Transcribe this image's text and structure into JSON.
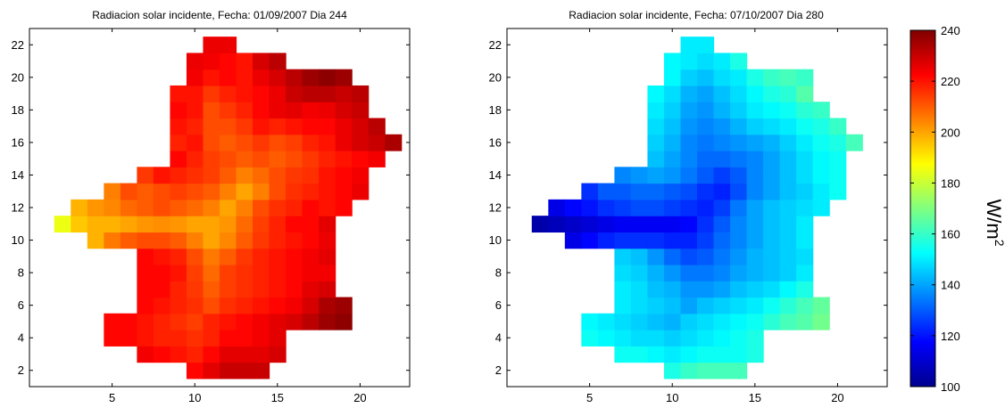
{
  "chart_data": [
    {
      "type": "heatmap",
      "title": "Radiacion solar incidente, Fecha: 01/09/2007 Dia 244",
      "xlim": [
        0,
        23
      ],
      "ylim": [
        1,
        23
      ],
      "xticks": [
        5,
        10,
        15,
        20
      ],
      "yticks": [
        2,
        4,
        6,
        8,
        10,
        12,
        14,
        16,
        18,
        20,
        22
      ],
      "grid": false,
      "units": "W/m²",
      "clim": [
        100,
        240
      ],
      "colormap": "jet",
      "cell_values_approx": {
        "22": {
          "11": 225,
          "12": 225
        },
        "21": {
          "10": 225,
          "11": 224,
          "12": 222,
          "13": 220,
          "14": 228,
          "15": 232
        },
        "20": {
          "10": 224,
          "11": 220,
          "12": 222,
          "13": 220,
          "14": 225,
          "15": 228,
          "16": 232,
          "17": 236,
          "18": 238,
          "19": 236
        },
        "19": {
          "9": 220,
          "10": 220,
          "11": 215,
          "12": 218,
          "13": 220,
          "14": 222,
          "15": 225,
          "16": 230,
          "17": 232,
          "18": 232,
          "19": 230,
          "20": 232
        },
        "18": {
          "9": 222,
          "10": 220,
          "11": 212,
          "12": 215,
          "13": 218,
          "14": 222,
          "15": 225,
          "16": 226,
          "17": 224,
          "18": 225,
          "19": 228,
          "20": 230
        },
        "17": {
          "9": 220,
          "10": 218,
          "11": 212,
          "12": 212,
          "13": 215,
          "14": 220,
          "15": 218,
          "16": 220,
          "17": 222,
          "18": 222,
          "19": 225,
          "20": 228,
          "21": 232
        },
        "16": {
          "9": 218,
          "10": 220,
          "11": 212,
          "12": 210,
          "13": 212,
          "14": 215,
          "15": 212,
          "16": 214,
          "17": 218,
          "18": 220,
          "19": 225,
          "20": 228,
          "21": 230,
          "22": 234
        },
        "15": {
          "9": 222,
          "10": 218,
          "11": 214,
          "12": 212,
          "13": 210,
          "14": 212,
          "15": 210,
          "16": 212,
          "17": 215,
          "18": 218,
          "19": 220,
          "20": 222,
          "21": 224
        },
        "14": {
          "7": 215,
          "8": 220,
          "9": 218,
          "10": 216,
          "11": 214,
          "12": 210,
          "13": 205,
          "14": 208,
          "15": 212,
          "16": 215,
          "17": 216,
          "18": 220,
          "19": 222,
          "20": 224
        },
        "13": {
          "5": 205,
          "6": 212,
          "7": 210,
          "8": 212,
          "9": 214,
          "10": 212,
          "11": 210,
          "12": 205,
          "13": 200,
          "14": 205,
          "15": 212,
          "16": 216,
          "17": 218,
          "18": 220,
          "19": 222,
          "20": 225
        },
        "12": {
          "3": 198,
          "4": 202,
          "5": 204,
          "6": 208,
          "7": 210,
          "8": 212,
          "9": 210,
          "10": 208,
          "11": 205,
          "12": 200,
          "13": 205,
          "14": 212,
          "15": 216,
          "16": 218,
          "17": 222,
          "18": 220,
          "19": 222
        },
        "11": {
          "2": 185,
          "3": 195,
          "4": 198,
          "5": 198,
          "6": 200,
          "7": 202,
          "8": 203,
          "9": 202,
          "10": 200,
          "11": 200,
          "12": 202,
          "13": 208,
          "14": 214,
          "15": 218,
          "16": 222,
          "17": 222,
          "18": 226
        },
        "10": {
          "4": 198,
          "5": 206,
          "6": 210,
          "7": 212,
          "8": 212,
          "9": 210,
          "10": 205,
          "11": 200,
          "12": 204,
          "13": 210,
          "14": 215,
          "15": 218,
          "16": 220,
          "17": 222,
          "18": 225
        },
        "9": {
          "7": 222,
          "8": 220,
          "9": 218,
          "10": 212,
          "11": 206,
          "12": 210,
          "13": 215,
          "14": 218,
          "15": 220,
          "16": 222,
          "17": 224,
          "18": 226
        },
        "8": {
          "7": 222,
          "8": 222,
          "9": 220,
          "10": 214,
          "11": 208,
          "12": 214,
          "13": 216,
          "14": 218,
          "15": 220,
          "16": 222,
          "17": 224,
          "18": 224
        },
        "7": {
          "7": 222,
          "8": 222,
          "9": 218,
          "10": 215,
          "11": 210,
          "12": 214,
          "13": 216,
          "14": 218,
          "15": 220,
          "16": 222,
          "17": 226,
          "18": 228
        },
        "6": {
          "7": 222,
          "8": 220,
          "9": 218,
          "10": 216,
          "11": 212,
          "12": 216,
          "13": 218,
          "14": 220,
          "15": 222,
          "16": 224,
          "17": 228,
          "18": 234,
          "19": 236
        },
        "5": {
          "5": 222,
          "6": 222,
          "7": 220,
          "8": 218,
          "9": 216,
          "10": 214,
          "11": 218,
          "12": 220,
          "13": 222,
          "14": 224,
          "15": 226,
          "16": 228,
          "17": 232,
          "18": 236,
          "19": 238
        },
        "4": {
          "5": 222,
          "6": 222,
          "7": 220,
          "8": 218,
          "9": 218,
          "10": 216,
          "11": 218,
          "12": 222,
          "13": 222,
          "14": 224,
          "15": 226
        },
        "3": {
          "7": 224,
          "8": 222,
          "9": 220,
          "10": 218,
          "11": 222,
          "12": 226,
          "13": 226,
          "14": 226,
          "15": 228
        },
        "2": {
          "10": 222,
          "11": 226,
          "12": 230,
          "13": 230,
          "14": 230
        }
      }
    },
    {
      "type": "heatmap",
      "title": "Radiacion solar incidente, Fecha: 07/10/2007 Dia 280",
      "xlim": [
        0,
        23
      ],
      "ylim": [
        1,
        23
      ],
      "xticks": [
        5,
        10,
        15,
        20
      ],
      "yticks": [
        2,
        4,
        6,
        8,
        10,
        12,
        14,
        16,
        18,
        20,
        22
      ],
      "grid": false,
      "units": "W/m²",
      "clim": [
        100,
        240
      ],
      "colormap": "jet",
      "cell_values_approx": {
        "22": {
          "11": 150,
          "12": 150
        },
        "21": {
          "10": 152,
          "11": 150,
          "12": 148,
          "13": 150,
          "14": 156
        },
        "20": {
          "10": 152,
          "11": 146,
          "12": 144,
          "13": 148,
          "14": 150,
          "15": 156,
          "16": 160,
          "17": 162,
          "18": 160
        },
        "19": {
          "9": 152,
          "10": 148,
          "11": 142,
          "12": 140,
          "13": 144,
          "14": 148,
          "15": 152,
          "16": 156,
          "17": 158,
          "18": 164
        },
        "18": {
          "9": 150,
          "10": 146,
          "11": 140,
          "12": 138,
          "13": 142,
          "14": 146,
          "15": 150,
          "16": 152,
          "17": 154,
          "18": 158,
          "19": 160
        },
        "17": {
          "9": 148,
          "10": 144,
          "11": 138,
          "12": 136,
          "13": 138,
          "14": 142,
          "15": 146,
          "16": 148,
          "17": 150,
          "18": 154,
          "19": 156,
          "20": 160
        },
        "16": {
          "9": 146,
          "10": 142,
          "11": 136,
          "12": 134,
          "13": 136,
          "14": 138,
          "15": 140,
          "16": 142,
          "17": 146,
          "18": 150,
          "19": 154,
          "20": 156,
          "21": 162
        },
        "15": {
          "9": 144,
          "10": 140,
          "11": 136,
          "12": 132,
          "13": 132,
          "14": 134,
          "15": 136,
          "16": 140,
          "17": 144,
          "18": 148,
          "19": 152,
          "20": 154
        },
        "14": {
          "7": 136,
          "8": 138,
          "9": 140,
          "10": 138,
          "11": 134,
          "12": 130,
          "13": 126,
          "14": 130,
          "15": 136,
          "16": 140,
          "17": 144,
          "18": 148,
          "19": 152,
          "20": 154
        },
        "13": {
          "5": 124,
          "6": 130,
          "7": 130,
          "8": 132,
          "9": 132,
          "10": 130,
          "11": 128,
          "12": 124,
          "13": 122,
          "14": 128,
          "15": 136,
          "16": 140,
          "17": 144,
          "18": 146,
          "19": 150,
          "20": 154
        },
        "12": {
          "3": 114,
          "4": 118,
          "5": 120,
          "6": 124,
          "7": 126,
          "8": 128,
          "9": 128,
          "10": 126,
          "11": 124,
          "12": 122,
          "13": 126,
          "14": 134,
          "15": 140,
          "16": 144,
          "17": 146,
          "18": 148,
          "19": 150
        },
        "11": {
          "2": 106,
          "3": 108,
          "4": 110,
          "5": 112,
          "6": 114,
          "7": 116,
          "8": 116,
          "9": 116,
          "10": 116,
          "11": 118,
          "12": 124,
          "13": 130,
          "14": 136,
          "15": 140,
          "16": 144,
          "17": 146,
          "18": 150
        },
        "10": {
          "4": 114,
          "5": 118,
          "6": 122,
          "7": 124,
          "8": 124,
          "9": 124,
          "10": 122,
          "11": 122,
          "12": 126,
          "13": 132,
          "14": 136,
          "15": 140,
          "16": 144,
          "17": 146,
          "18": 150
        },
        "9": {
          "7": 146,
          "8": 144,
          "9": 138,
          "10": 132,
          "11": 128,
          "12": 130,
          "13": 134,
          "14": 138,
          "15": 142,
          "16": 144,
          "17": 146,
          "18": 148
        },
        "8": {
          "7": 148,
          "8": 146,
          "9": 142,
          "10": 138,
          "11": 134,
          "12": 134,
          "13": 136,
          "14": 140,
          "15": 142,
          "16": 144,
          "17": 146,
          "18": 150
        },
        "7": {
          "7": 150,
          "8": 148,
          "9": 144,
          "10": 142,
          "11": 138,
          "12": 138,
          "13": 140,
          "14": 144,
          "15": 146,
          "16": 148,
          "17": 152,
          "18": 156
        },
        "6": {
          "7": 150,
          "8": 148,
          "9": 146,
          "10": 144,
          "11": 140,
          "12": 144,
          "13": 146,
          "14": 148,
          "15": 150,
          "16": 154,
          "17": 158,
          "18": 162,
          "19": 166
        },
        "5": {
          "5": 152,
          "6": 150,
          "7": 148,
          "8": 146,
          "9": 144,
          "10": 142,
          "11": 146,
          "12": 148,
          "13": 150,
          "14": 152,
          "15": 154,
          "16": 158,
          "17": 162,
          "18": 164,
          "19": 168
        },
        "4": {
          "5": 154,
          "6": 152,
          "7": 150,
          "8": 148,
          "9": 148,
          "10": 146,
          "11": 148,
          "12": 150,
          "13": 152,
          "14": 154,
          "15": 156
        },
        "3": {
          "7": 154,
          "8": 154,
          "9": 152,
          "10": 150,
          "11": 152,
          "12": 154,
          "13": 154,
          "14": 154,
          "15": 156
        },
        "2": {
          "10": 156,
          "11": 160,
          "12": 162,
          "13": 162,
          "14": 162
        }
      }
    }
  ],
  "colorbar": {
    "label": "W/m",
    "label_sup": "2",
    "ticks": [
      100,
      120,
      140,
      160,
      180,
      200,
      220,
      240
    ],
    "range": [
      100,
      240
    ],
    "colormap": "jet"
  }
}
